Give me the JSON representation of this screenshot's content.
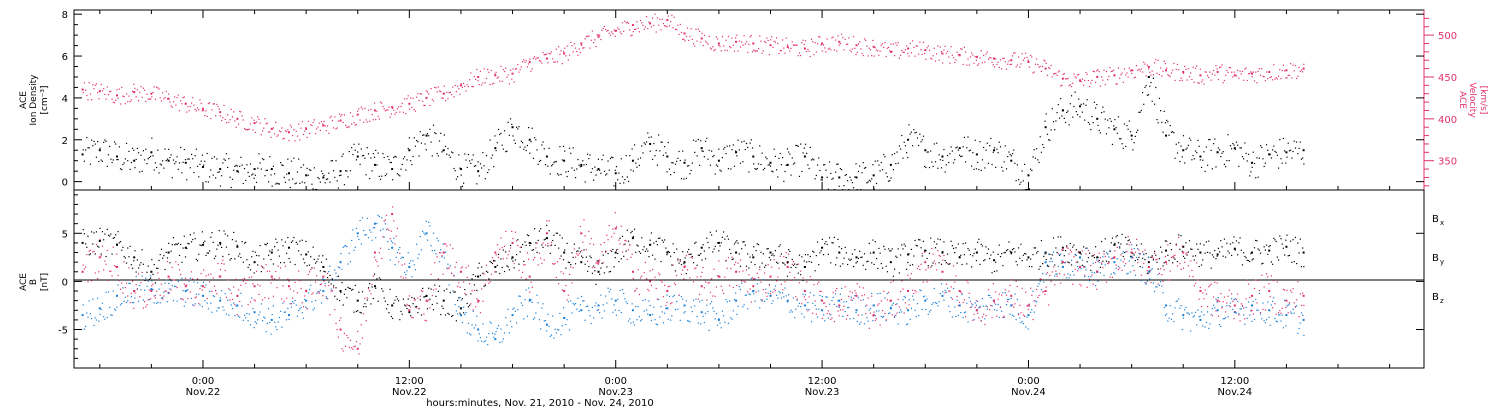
{
  "colors": {
    "black": "#000000",
    "blue": "#1a7fd6",
    "pink": "#e0306a"
  },
  "x_axis": {
    "title": "hours:minutes, Nov. 21, 2010 - Nov. 24, 2010",
    "ticks": [
      {
        "hour": 24,
        "time": "0:00",
        "date": "Nov.22"
      },
      {
        "hour": 36,
        "time": "12:00",
        "date": "Nov.22"
      },
      {
        "hour": 48,
        "time": "0:00",
        "date": "Nov.23"
      },
      {
        "hour": 60,
        "time": "12:00",
        "date": "Nov.23"
      },
      {
        "hour": 72,
        "time": "0:00",
        "date": "Nov.24"
      },
      {
        "hour": 84,
        "time": "12:00",
        "date": "Nov.24"
      }
    ]
  },
  "chart_data": [
    {
      "type": "scatter",
      "panel": "top",
      "xlim_hours": [
        16.5,
        95.0
      ],
      "left_axis": {
        "label_line1": "ACE",
        "label_line2": "Ion Density",
        "label_unit": "[cm⁻³]",
        "ylim": [
          -0.4,
          8.2
        ],
        "ticks": [
          "0",
          "2",
          "4",
          "6",
          "8"
        ]
      },
      "right_axis": {
        "label_line1": "ACE",
        "label_line2": "Velocity",
        "label_unit": "[km/s]",
        "ylim": [
          315,
          530
        ],
        "ticks": [
          "350",
          "400",
          "450",
          "500"
        ]
      },
      "series": [
        {
          "name": "",
          "axis": "left",
          "color": "#000000",
          "x": [
            17,
            18,
            19,
            20,
            21,
            22,
            23,
            24,
            25,
            26,
            27,
            28,
            29,
            30,
            31,
            32,
            33,
            34,
            35,
            36,
            37,
            38,
            39,
            40,
            41,
            42,
            43,
            44,
            45,
            46,
            47,
            48,
            49,
            50,
            51,
            52,
            53,
            54,
            55,
            56,
            57,
            58,
            59,
            60,
            61,
            62,
            63,
            64,
            65,
            66,
            67,
            68,
            69,
            70,
            71,
            72,
            73,
            74,
            75,
            76,
            77,
            78,
            79,
            80,
            81,
            82,
            83,
            84,
            85,
            86,
            87,
            88
          ],
          "y": [
            1.3,
            1.5,
            1.2,
            1.0,
            1.4,
            1.0,
            0.9,
            0.7,
            0.6,
            0.5,
            0.6,
            0.6,
            0.4,
            0.3,
            0.2,
            0.5,
            1.2,
            0.8,
            0.6,
            1.5,
            2.2,
            1.5,
            0.6,
            0.5,
            1.6,
            2.6,
            2.0,
            1.2,
            1.0,
            0.8,
            0.6,
            0.4,
            1.0,
            1.8,
            1.2,
            0.9,
            1.6,
            1.0,
            1.4,
            1.2,
            0.9,
            0.8,
            1.2,
            0.2,
            0.2,
            0.2,
            0.3,
            0.8,
            2.0,
            1.5,
            1.2,
            1.6,
            1.3,
            1.5,
            1.0,
            0.3,
            2.6,
            3.4,
            3.6,
            3.0,
            2.5,
            2.2,
            5.0,
            2.2,
            1.5,
            1.2,
            1.4,
            1.6,
            0.9,
            1.3,
            1.4,
            1.5
          ]
        },
        {
          "name": "",
          "axis": "right",
          "color": "#e0306a",
          "x": [
            17,
            18,
            19,
            20,
            21,
            22,
            23,
            24,
            25,
            26,
            27,
            28,
            29,
            30,
            31,
            32,
            33,
            34,
            35,
            36,
            37,
            38,
            39,
            40,
            41,
            42,
            43,
            44,
            45,
            46,
            47,
            48,
            49,
            50,
            51,
            52,
            53,
            54,
            55,
            56,
            57,
            58,
            59,
            60,
            61,
            62,
            63,
            64,
            65,
            66,
            67,
            68,
            69,
            70,
            71,
            72,
            73,
            74,
            75,
            76,
            77,
            78,
            79,
            80,
            81,
            82,
            83,
            84,
            85,
            86,
            87,
            88
          ],
          "y": [
            435,
            433,
            428,
            432,
            430,
            424,
            418,
            412,
            408,
            400,
            395,
            388,
            384,
            388,
            392,
            398,
            405,
            410,
            414,
            418,
            425,
            430,
            440,
            450,
            452,
            454,
            468,
            472,
            478,
            490,
            498,
            505,
            512,
            514,
            518,
            502,
            496,
            490,
            492,
            490,
            488,
            486,
            484,
            490,
            492,
            488,
            486,
            480,
            484,
            482,
            478,
            476,
            474,
            472,
            470,
            468,
            460,
            448,
            446,
            450,
            452,
            458,
            462,
            458,
            456,
            452,
            456,
            452,
            454,
            456,
            458,
            460
          ]
        }
      ]
    },
    {
      "type": "scatter",
      "panel": "bottom",
      "xlim_hours": [
        16.5,
        95.0
      ],
      "left_axis": {
        "label_line1": "ACE",
        "label_line2": "B",
        "label_unit": "[nT]",
        "ylim": [
          -9,
          9.5
        ],
        "ticks": [
          "-5",
          "0",
          "5"
        ]
      },
      "series": [
        {
          "name": "B",
          "sub": "x",
          "color": "#000000",
          "x": [
            17,
            18,
            19,
            20,
            21,
            22,
            23,
            24,
            25,
            26,
            27,
            28,
            29,
            30,
            31,
            32,
            33,
            34,
            35,
            36,
            37,
            38,
            39,
            40,
            41,
            42,
            43,
            44,
            45,
            46,
            47,
            48,
            49,
            50,
            51,
            52,
            53,
            54,
            55,
            56,
            57,
            58,
            59,
            60,
            61,
            62,
            63,
            64,
            65,
            66,
            67,
            68,
            69,
            70,
            71,
            72,
            73,
            74,
            75,
            76,
            77,
            78,
            79,
            80,
            81,
            82,
            83,
            84,
            85,
            86,
            87,
            88
          ],
          "y": [
            4.0,
            4.2,
            3.8,
            2.5,
            1.0,
            3.0,
            3.5,
            3.8,
            4.0,
            3.6,
            2.0,
            3.0,
            3.5,
            2.8,
            1.5,
            -1.0,
            -2.0,
            -0.5,
            -2.5,
            -3.2,
            -1.5,
            -2.0,
            -2.8,
            0.5,
            1.5,
            2.5,
            4.0,
            4.5,
            3.0,
            2.0,
            1.0,
            3.0,
            4.5,
            3.8,
            3.0,
            2.0,
            3.5,
            4.0,
            3.0,
            2.5,
            3.0,
            2.0,
            1.5,
            3.5,
            3.0,
            2.5,
            3.0,
            2.0,
            2.8,
            3.2,
            3.0,
            2.5,
            3.0,
            2.2,
            3.0,
            2.5,
            3.0,
            3.5,
            3.0,
            2.5,
            3.8,
            3.0,
            2.0,
            3.2,
            3.6,
            3.0,
            2.8,
            3.4,
            3.0,
            3.2,
            3.6,
            3.0
          ]
        },
        {
          "name": "B",
          "sub": "y",
          "color": "#1a7fd6",
          "x": [
            17,
            18,
            19,
            20,
            21,
            22,
            23,
            24,
            25,
            26,
            27,
            28,
            29,
            30,
            31,
            32,
            33,
            34,
            35,
            36,
            37,
            38,
            39,
            40,
            41,
            42,
            43,
            44,
            45,
            46,
            47,
            48,
            49,
            50,
            51,
            52,
            53,
            54,
            55,
            56,
            57,
            58,
            59,
            60,
            61,
            62,
            63,
            64,
            65,
            66,
            67,
            68,
            69,
            70,
            71,
            72,
            73,
            74,
            75,
            76,
            77,
            78,
            79,
            80,
            81,
            82,
            83,
            84,
            85,
            86,
            87,
            88
          ],
          "y": [
            -3.5,
            -2.8,
            -1.5,
            -1.0,
            -0.8,
            -1.2,
            -1.0,
            -1.5,
            -2.0,
            -2.5,
            -3.2,
            -4.0,
            -3.5,
            -2.0,
            -1.0,
            2.0,
            5.0,
            6.0,
            3.5,
            1.5,
            5.0,
            3.0,
            -3.5,
            -5.0,
            -6.0,
            -3.5,
            -2.0,
            -4.5,
            -3.8,
            -3.0,
            -2.5,
            -2.0,
            -3.0,
            -3.5,
            -2.8,
            -2.5,
            -3.2,
            -4.0,
            -2.0,
            -1.0,
            -1.5,
            -2.0,
            -2.5,
            -3.0,
            -2.0,
            -3.0,
            -2.5,
            -2.8,
            -3.0,
            -2.0,
            -1.5,
            -2.5,
            -3.0,
            -2.0,
            -2.5,
            -3.5,
            2.0,
            1.5,
            2.5,
            1.0,
            2.0,
            2.5,
            1.0,
            -2.5,
            -3.5,
            -4.0,
            -3.0,
            -3.2,
            -2.5,
            -3.0,
            -3.5,
            -4.0
          ]
        },
        {
          "name": "B",
          "sub": "z",
          "color": "#e0306a",
          "x": [
            17,
            18,
            19,
            20,
            21,
            22,
            23,
            24,
            25,
            26,
            27,
            28,
            29,
            30,
            31,
            32,
            33,
            34,
            35,
            36,
            37,
            38,
            39,
            40,
            41,
            42,
            43,
            44,
            45,
            46,
            47,
            48,
            49,
            50,
            51,
            52,
            53,
            54,
            55,
            56,
            57,
            58,
            59,
            60,
            61,
            62,
            63,
            64,
            65,
            66,
            67,
            68,
            69,
            70,
            71,
            72,
            73,
            74,
            75,
            76,
            77,
            78,
            79,
            80,
            81,
            82,
            83,
            84,
            85,
            86,
            87,
            88
          ],
          "y": [
            1.0,
            2.5,
            1.5,
            -1.0,
            -1.0,
            0.5,
            -0.5,
            -0.5,
            0.5,
            -1.5,
            -0.5,
            0.5,
            -0.5,
            -1.0,
            0.5,
            -5.0,
            -7.0,
            3.0,
            7.0,
            -3.0,
            -2.0,
            3.0,
            1.0,
            -2.0,
            3.0,
            4.0,
            0.5,
            5.0,
            -1.0,
            5.0,
            2.0,
            5.5,
            1.0,
            0.0,
            -1.0,
            1.5,
            -0.5,
            0.5,
            1.0,
            -0.5,
            0.5,
            1.5,
            -1.0,
            -2.0,
            -2.5,
            -1.5,
            -3.5,
            -2.0,
            -1.0,
            2.0,
            1.0,
            -1.0,
            -3.0,
            -2.0,
            -1.5,
            -2.5,
            -1.0,
            2.0,
            1.5,
            1.0,
            2.5,
            3.0,
            1.5,
            2.0,
            3.0,
            -1.0,
            -2.0,
            -2.5,
            -1.5,
            -1.0,
            -2.0,
            -1.5
          ]
        }
      ]
    }
  ]
}
